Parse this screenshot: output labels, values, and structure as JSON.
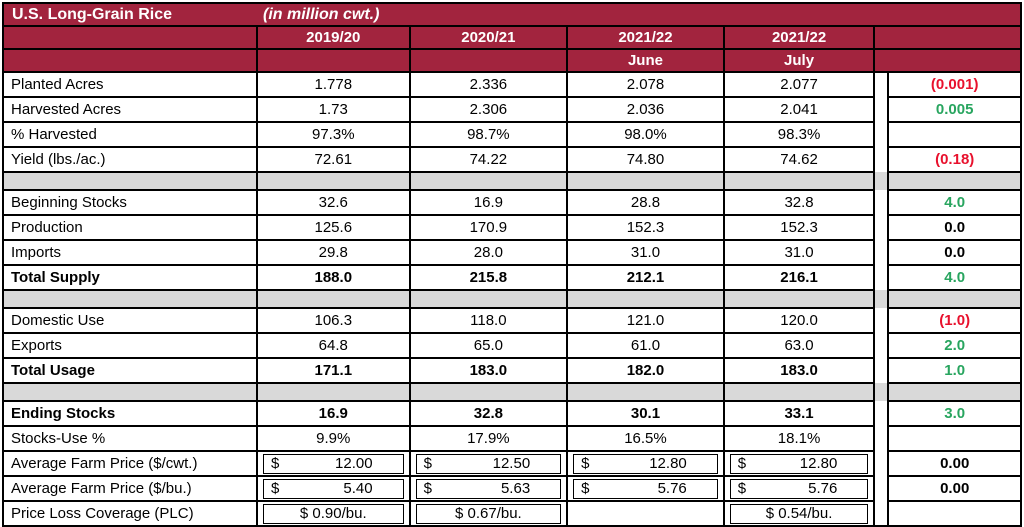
{
  "title": {
    "name": "U.S. Long-Grain Rice",
    "unit": "(in million cwt.)"
  },
  "colors": {
    "maroon": "#A2243E",
    "gray": "#D9D9D9",
    "green": "#28A55F",
    "red": "#E8112D"
  },
  "header": {
    "years": [
      "2019/20",
      "2020/21",
      "2021/22",
      "2021/22"
    ],
    "months": [
      "",
      "",
      "June",
      "July"
    ]
  },
  "table": {
    "rows": [
      {
        "type": "data",
        "label": "Planted Acres",
        "values": [
          "1.778",
          "2.336",
          "2.078",
          "2.077"
        ],
        "change": "(0.001)",
        "changeColor": "neg"
      },
      {
        "type": "data",
        "label": "Harvested Acres",
        "values": [
          "1.73",
          "2.306",
          "2.036",
          "2.041"
        ],
        "change": "0.005",
        "changeColor": "pos"
      },
      {
        "type": "data",
        "label": "% Harvested",
        "values": [
          "97.3%",
          "98.7%",
          "98.0%",
          "98.3%"
        ],
        "change": "",
        "changeColor": "zero"
      },
      {
        "type": "data",
        "label": "Yield (lbs./ac.)",
        "values": [
          "72.61",
          "74.22",
          "74.80",
          "74.62"
        ],
        "change": "(0.18)",
        "changeColor": "neg"
      },
      {
        "type": "spacer"
      },
      {
        "type": "data",
        "label": "Beginning Stocks",
        "values": [
          "32.6",
          "16.9",
          "28.8",
          "32.8"
        ],
        "change": "4.0",
        "changeColor": "pos"
      },
      {
        "type": "data",
        "label": "Production",
        "values": [
          "125.6",
          "170.9",
          "152.3",
          "152.3"
        ],
        "change": "0.0",
        "changeColor": "zero"
      },
      {
        "type": "data",
        "label": "Imports",
        "values": [
          "29.8",
          "28.0",
          "31.0",
          "31.0"
        ],
        "change": "0.0",
        "changeColor": "zero"
      },
      {
        "type": "data",
        "bold": true,
        "label": "Total Supply",
        "values": [
          "188.0",
          "215.8",
          "212.1",
          "216.1"
        ],
        "change": "4.0",
        "changeColor": "pos"
      },
      {
        "type": "spacer"
      },
      {
        "type": "data",
        "label": "Domestic Use",
        "values": [
          "106.3",
          "118.0",
          "121.0",
          "120.0"
        ],
        "change": "(1.0)",
        "changeColor": "neg"
      },
      {
        "type": "data",
        "label": "Exports",
        "values": [
          "64.8",
          "65.0",
          "61.0",
          "63.0"
        ],
        "change": "2.0",
        "changeColor": "pos"
      },
      {
        "type": "data",
        "bold": true,
        "label": "Total Usage",
        "values": [
          "171.1",
          "183.0",
          "182.0",
          "183.0"
        ],
        "change": "1.0",
        "changeColor": "pos"
      },
      {
        "type": "spacer"
      },
      {
        "type": "data",
        "bold": true,
        "label": "Ending Stocks",
        "values": [
          "16.9",
          "32.8",
          "30.1",
          "33.1"
        ],
        "change": "3.0",
        "changeColor": "pos"
      },
      {
        "type": "data",
        "label": "Stocks-Use %",
        "values": [
          "9.9%",
          "17.9%",
          "16.5%",
          "18.1%"
        ],
        "change": "",
        "changeColor": "zero"
      },
      {
        "type": "price",
        "label": "Average Farm Price ($/cwt.)",
        "values": [
          "12.00",
          "12.50",
          "12.80",
          "12.80"
        ],
        "currency": "$",
        "change": "0.00",
        "changeColor": "zero"
      },
      {
        "type": "price",
        "label": "Average Farm Price ($/bu.)",
        "values": [
          "5.40",
          "5.63",
          "5.76",
          "5.76"
        ],
        "currency": "$",
        "change": "0.00",
        "changeColor": "zero"
      },
      {
        "type": "plc",
        "label": "Price Loss Coverage (PLC)",
        "values": [
          "$ 0.90/bu.",
          "$ 0.67/bu.",
          "",
          "$ 0.54/bu."
        ],
        "change": "",
        "changeColor": "zero"
      }
    ]
  }
}
